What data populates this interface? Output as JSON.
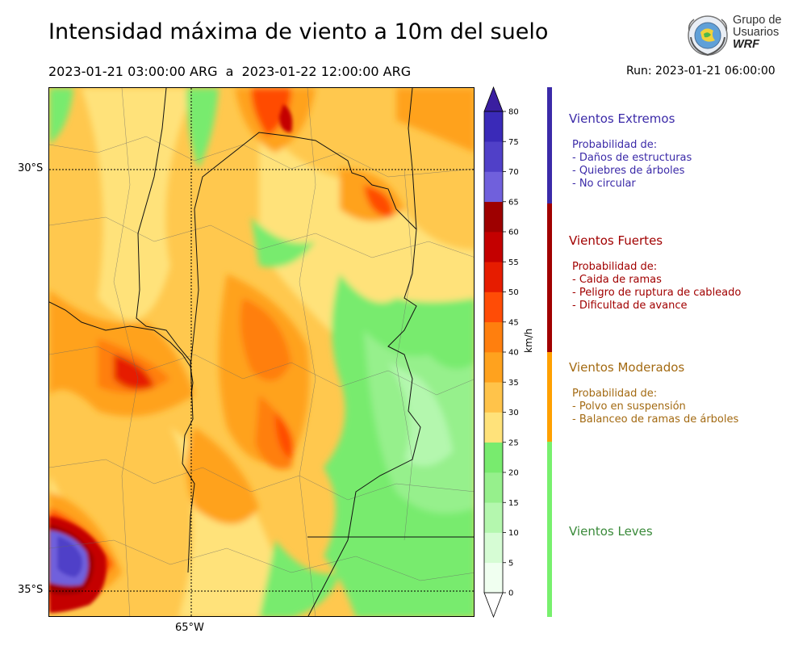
{
  "header": {
    "title": "Intensidad máxima de viento a 10m del suelo",
    "period": "2023-01-21 03:00:00 ARG  a  2023-01-22 12:00:00 ARG",
    "run": "Run: 2023-01-21 06:00:00"
  },
  "logo": {
    "line1": "Grupo de",
    "line2": "Usuarios",
    "line3": "WRF"
  },
  "map": {
    "lat_labels": [
      "30°S",
      "35°S"
    ],
    "lon_labels": [
      "65°W"
    ]
  },
  "colorbar": {
    "unit": "km/h",
    "ticks": [
      "0",
      "5",
      "10",
      "15",
      "20",
      "25",
      "30",
      "35",
      "40",
      "45",
      "50",
      "55",
      "60",
      "65",
      "70",
      "75",
      "80"
    ],
    "colors": [
      "#f0fff0",
      "#d6fcd4",
      "#b4f7ae",
      "#96f08c",
      "#78eb6e",
      "#ffe27a",
      "#ffc34a",
      "#ffa21e",
      "#ff7f0e",
      "#ff4c06",
      "#e61c00",
      "#c40000",
      "#9e0000",
      "#7060dc",
      "#5040c8",
      "#3a2ab8"
    ]
  },
  "legend": [
    {
      "title": "Vientos Extremos",
      "color": "#3b2aa8",
      "body": "Probabilidad de:\n- Daños de estructuras\n- Quiebres de árboles\n- No circular"
    },
    {
      "title": "Vientos Fuertes",
      "color": "#a10000",
      "body": "Probabilidad de:\n- Caida de ramas\n- Peligro de ruptura de cableado\n- Dificultad de avance"
    },
    {
      "title": "Vientos Moderados",
      "color": "#a36a12",
      "body": "Probabilidad de:\n- Polvo en suspensión\n- Balanceo de ramas de árboles"
    },
    {
      "title": "Vientos Leves",
      "color": "#3a8a3a",
      "body": ""
    }
  ],
  "scale_bar_colors": {
    "extreme": "#3b2aa8",
    "strong": "#a10000",
    "moderate": "#ffa000",
    "light": "#78f06e"
  }
}
